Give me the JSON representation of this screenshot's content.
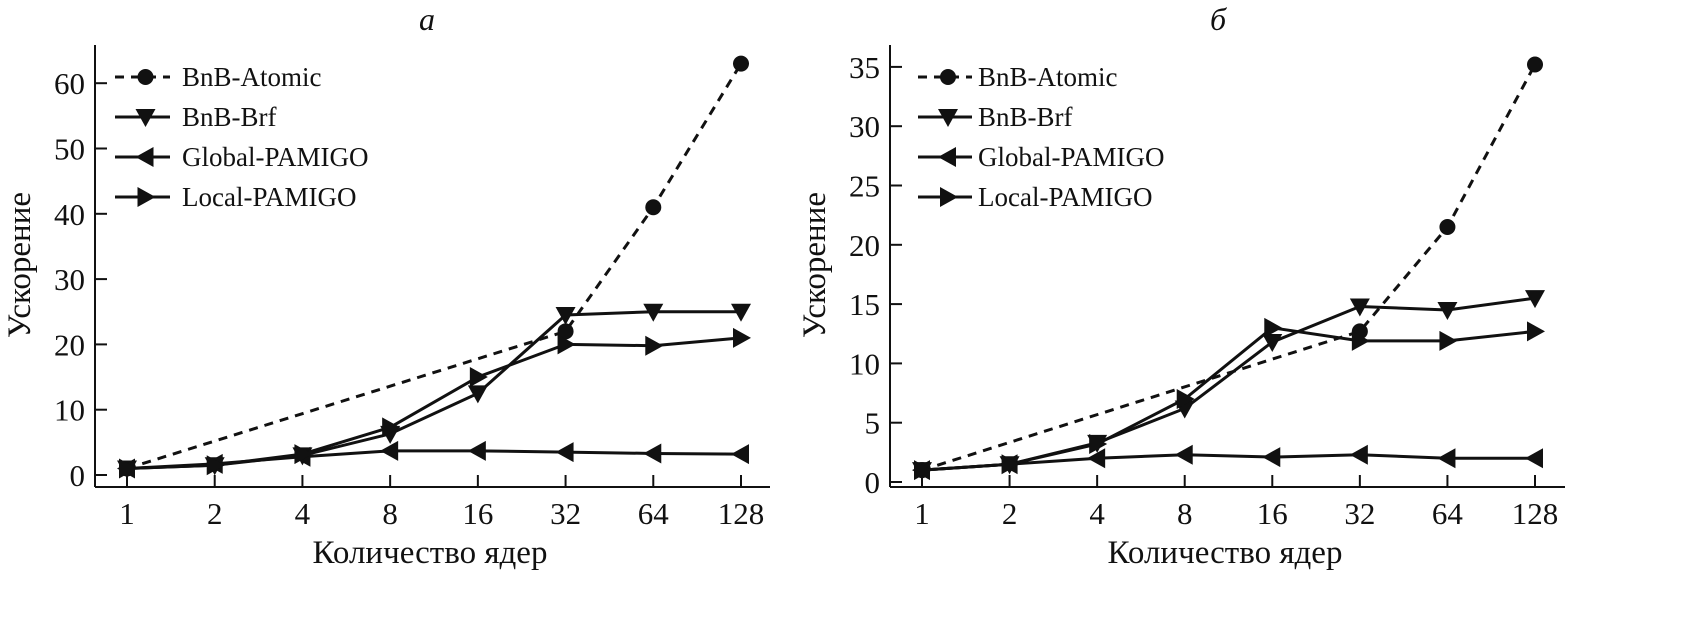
{
  "chart_data": [
    {
      "type": "line",
      "title": "а",
      "xlabel": "Количество ядер",
      "ylabel": "Ускорение",
      "x": [
        1,
        2,
        4,
        8,
        16,
        32,
        64,
        128
      ],
      "x_tick_labels": [
        "1",
        "2",
        "4",
        "8",
        "16",
        "32",
        "64",
        "128"
      ],
      "x_scale": "log2",
      "ylim": [
        0,
        65
      ],
      "y_ticks": [
        0,
        10,
        20,
        30,
        40,
        50,
        60
      ],
      "grid": false,
      "legend_position": "top-left",
      "series": [
        {
          "name": "BnB-Atomic",
          "marker": "circle",
          "dash": true,
          "x": [
            1,
            32,
            64,
            128
          ],
          "values": [
            1,
            22,
            41,
            63
          ]
        },
        {
          "name": "BnB-Brf",
          "marker": "triangle-down",
          "dash": false,
          "x": [
            1,
            2,
            4,
            8,
            16,
            32,
            64,
            128
          ],
          "values": [
            1,
            1.5,
            3,
            6.3,
            12.5,
            24.5,
            25,
            25
          ]
        },
        {
          "name": "Global-PAMIGO",
          "marker": "triangle-left",
          "dash": false,
          "x": [
            1,
            2,
            4,
            8,
            16,
            32,
            64,
            128
          ],
          "values": [
            1,
            1.7,
            2.8,
            3.7,
            3.7,
            3.5,
            3.3,
            3.2
          ]
        },
        {
          "name": "Local-PAMIGO",
          "marker": "triangle-right",
          "dash": false,
          "x": [
            1,
            2,
            4,
            8,
            16,
            32,
            64,
            128
          ],
          "values": [
            1,
            1.5,
            3.2,
            7.3,
            15,
            20,
            19.8,
            21
          ]
        }
      ]
    },
    {
      "type": "line",
      "title": "б",
      "xlabel": "Количество ядер",
      "ylabel": "Ускорение",
      "x": [
        1,
        2,
        4,
        8,
        16,
        32,
        64,
        128
      ],
      "x_tick_labels": [
        "1",
        "2",
        "4",
        "8",
        "16",
        "32",
        "64",
        "128"
      ],
      "x_scale": "log2",
      "ylim": [
        0,
        37
      ],
      "y_ticks": [
        0,
        5,
        10,
        15,
        20,
        25,
        30,
        35
      ],
      "grid": false,
      "legend_position": "top-left",
      "series": [
        {
          "name": "BnB-Atomic",
          "marker": "circle",
          "dash": true,
          "x": [
            1,
            32,
            64,
            128
          ],
          "values": [
            1,
            12.7,
            21.5,
            35.2
          ]
        },
        {
          "name": "BnB-Brf",
          "marker": "triangle-down",
          "dash": false,
          "x": [
            1,
            2,
            4,
            8,
            16,
            32,
            64,
            128
          ],
          "values": [
            1,
            1.5,
            3.3,
            6.2,
            11.8,
            14.8,
            14.5,
            15.5
          ]
        },
        {
          "name": "Global-PAMIGO",
          "marker": "triangle-left",
          "dash": false,
          "x": [
            1,
            2,
            4,
            8,
            16,
            32,
            64,
            128
          ],
          "values": [
            1,
            1.5,
            2,
            2.3,
            2.1,
            2.3,
            2,
            2
          ]
        },
        {
          "name": "Local-PAMIGO",
          "marker": "triangle-right",
          "dash": false,
          "x": [
            1,
            2,
            4,
            8,
            16,
            32,
            64,
            128
          ],
          "values": [
            1,
            1.5,
            3.2,
            7,
            13,
            11.9,
            11.9,
            12.7
          ]
        }
      ]
    }
  ]
}
